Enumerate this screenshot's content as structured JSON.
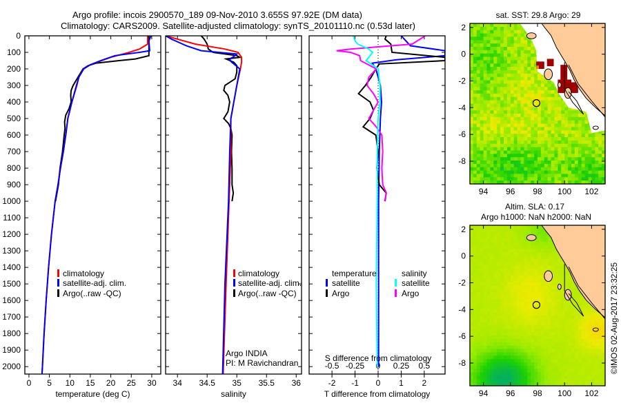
{
  "title": {
    "line1": "Argo profile: incois 2900570_189 09-Nov-2010 3.655S 97.92E (DM data)",
    "line2": "Climatology: CARS2009. Satellite-adjusted climatology: synTS_20101110.nc (0.53d later)"
  },
  "colors": {
    "climatology": "#ff0000",
    "satellite": "#0000ff",
    "argo": "#000000",
    "sal_satellite": "#00ffff",
    "sal_argo": "#ff00ff",
    "land": "#ffcc99",
    "flag": "#a00000"
  },
  "annotation": {
    "argo_program": "Argo INDIA",
    "pi": "PI: M Ravichandran"
  },
  "credit": "©IMOS 02-Aug-2017 23:32:25",
  "chart_data": [
    {
      "type": "line",
      "id": "temperature",
      "xlabel": "temperature (deg C)",
      "ylabel": "depth",
      "xlim": [
        -1,
        32.2
      ],
      "ylim": [
        2045,
        0
      ],
      "xticks": [
        0,
        5,
        10,
        15,
        20,
        25,
        30
      ],
      "yticks": [
        0,
        100,
        200,
        300,
        400,
        500,
        600,
        700,
        800,
        900,
        1000,
        1100,
        1200,
        1300,
        1400,
        1500,
        1600,
        1700,
        1800,
        1900,
        2000
      ],
      "legend": [
        "climatology",
        "satellite-adj. clim.",
        "Argo(..raw -QC)"
      ],
      "series": [
        {
          "name": "climatology",
          "color": "#ff0000",
          "depth": [
            0,
            50,
            80,
            100,
            130,
            150,
            175,
            200,
            250,
            300,
            400,
            500,
            600,
            700,
            800,
            900,
            1000,
            1200,
            1400,
            1600,
            1800,
            2000,
            2045
          ],
          "values": [
            29,
            29,
            27,
            24.5,
            20,
            17.7,
            15,
            13.3,
            12.2,
            11.7,
            10.5,
            9.5,
            9,
            8.4,
            7.7,
            7.1,
            6.4,
            5.5,
            4.8,
            4.2,
            3.7,
            3.3,
            3.2
          ]
        },
        {
          "name": "satellite-adj. clim.",
          "color": "#0000ff",
          "depth": [
            0,
            30,
            90,
            100,
            120,
            150,
            175,
            200,
            250,
            300,
            400,
            500,
            600,
            700,
            800,
            900,
            1000,
            1200,
            1400,
            1600,
            1800,
            2000,
            2045
          ],
          "values": [
            29.8,
            29.3,
            29.5,
            27,
            21,
            17.5,
            15,
            13.4,
            12.2,
            11.6,
            10.5,
            9.5,
            9,
            8.4,
            7.7,
            7.1,
            6.4,
            5.5,
            4.8,
            4.2,
            3.7,
            3.3,
            3.2
          ]
        },
        {
          "name": "Argo(..raw -QC)",
          "color": "#000000",
          "depth": [
            0,
            120,
            140,
            150,
            165,
            180,
            200,
            250,
            300,
            330,
            360,
            400,
            440,
            480,
            520,
            560,
            600,
            700,
            800,
            900,
            1000
          ],
          "values": [
            29.3,
            29.3,
            26,
            22,
            16.5,
            14.5,
            13.2,
            12,
            10.8,
            10.3,
            10.2,
            10.3,
            9.8,
            9.0,
            8.7,
            8.8,
            8.6,
            8.2,
            7.6,
            7.2,
            6.5
          ]
        }
      ]
    },
    {
      "type": "line",
      "id": "salinity",
      "xlabel": "salinity",
      "xlim": [
        33.8,
        36.09
      ],
      "ylim": [
        2045,
        0
      ],
      "xticks": [
        34,
        34.5,
        35,
        35.5,
        36
      ],
      "legend": [
        "climatology",
        "satellite-adj. clim.",
        "Argo(..raw -QC)"
      ],
      "series": [
        {
          "name": "climatology",
          "color": "#ff0000",
          "depth": [
            0,
            20,
            50,
            80,
            100,
            130,
            160,
            200,
            300,
            400,
            500,
            700,
            1000,
            1500,
            2045
          ],
          "values": [
            33.8,
            34.0,
            34.3,
            34.8,
            35.02,
            35.08,
            35.08,
            35.06,
            35.0,
            34.95,
            34.9,
            34.9,
            34.87,
            34.82,
            34.77
          ]
        },
        {
          "name": "satellite-adj. clim.",
          "color": "#0000ff",
          "depth": [
            0,
            20,
            60,
            90,
            110,
            125,
            140,
            155,
            200,
            300,
            400,
            500,
            700,
            1000,
            1500,
            2045
          ],
          "values": [
            33.8,
            33.9,
            34.15,
            34.4,
            35.0,
            34.95,
            34.88,
            34.9,
            35.05,
            35.0,
            34.95,
            34.9,
            34.88,
            34.86,
            34.8,
            34.76
          ]
        },
        {
          "name": "Argo(..raw -QC)",
          "color": "#000000",
          "depth": [
            0,
            20,
            50,
            80,
            100,
            120,
            130,
            140,
            160,
            180,
            220,
            260,
            300,
            330,
            360,
            400,
            460,
            500,
            530,
            560,
            600,
            700,
            800,
            900,
            950,
            1000
          ],
          "values": [
            34.4,
            34.45,
            34.5,
            34.52,
            34.6,
            35.0,
            35.05,
            34.82,
            34.95,
            35.0,
            35.0,
            34.97,
            34.8,
            34.78,
            34.85,
            34.88,
            34.85,
            34.78,
            34.86,
            34.9,
            34.92,
            34.91,
            34.92,
            34.92,
            34.94,
            34.92
          ]
        }
      ]
    },
    {
      "type": "line",
      "id": "difference",
      "xlabel": "T difference from climatology",
      "xlabel2": "S difference from climatology",
      "xlim": [
        -2.99,
        2.9
      ],
      "xlim_s": [
        -0.7475,
        0.725
      ],
      "ylim": [
        2045,
        0
      ],
      "xticks": [
        "-2",
        "-1",
        "0",
        "1",
        "2"
      ],
      "xticks_s": [
        "-0.5",
        "-0.25",
        "0",
        "0.25",
        "0.5"
      ],
      "legend": {
        "temperature_header": "temperature",
        "salinity_header": "salinity",
        "t_satellite": "satellite",
        "t_argo": "Argo",
        "s_satellite": "satellite",
        "s_argo": "Argo"
      },
      "series": [
        {
          "name": "T satellite",
          "units": "degC",
          "color": "#0000ff",
          "depth": [
            0,
            30,
            60,
            90,
            100,
            120,
            145,
            165,
            200,
            300,
            400,
            500,
            700,
            1000,
            1500,
            2000
          ],
          "values": [
            1.0,
            1.2,
            1.4,
            2.9,
            2.9,
            2.9,
            0.8,
            -0.25,
            -0.1,
            0.1,
            0.15,
            0.1,
            0.05,
            0.02,
            0.02,
            0.02
          ]
        },
        {
          "name": "T Argo",
          "units": "degC",
          "color": "#000000",
          "depth": [
            0,
            20,
            50,
            100,
            130,
            150,
            170,
            200,
            250,
            300,
            350,
            400,
            450,
            500,
            550,
            600,
            700,
            800,
            900,
            950,
            1000
          ],
          "values": [
            0.35,
            0.3,
            0.55,
            0.6,
            2.9,
            2.9,
            0.05,
            -0.1,
            -0.3,
            -0.55,
            -0.85,
            -0.35,
            -0.2,
            -0.35,
            -0.65,
            -0.1,
            0,
            -0.05,
            0.05,
            0.35,
            0.3
          ]
        },
        {
          "name": "S satellite",
          "units": "psu",
          "color": "#00ffff",
          "depth": [
            0,
            30,
            50,
            80,
            100,
            130,
            150,
            200,
            300,
            400,
            500,
            700,
            1000,
            1500,
            2000
          ],
          "values": [
            -0.27,
            -0.25,
            -0.22,
            -0.1,
            -0.06,
            -0.1,
            -0.13,
            0,
            0.02,
            0.02,
            0.0,
            -0.01,
            -0.01,
            -0.02,
            -0.01
          ]
        },
        {
          "name": "S Argo",
          "units": "psu",
          "color": "#ff00ff",
          "depth": [
            0,
            50,
            80,
            90,
            100,
            120,
            150,
            200,
            250,
            300,
            350,
            400,
            450,
            500,
            550,
            600,
            700,
            800,
            900,
            950,
            1000
          ],
          "values": [
            0.51,
            0.37,
            -0.3,
            -0.45,
            -0.3,
            -0.2,
            -0.19,
            -0.02,
            -0.1,
            -0.12,
            -0.05,
            0,
            -0.05,
            -0.1,
            -0.02,
            0.04,
            0.05,
            0.04,
            0.05,
            0.09,
            0.07
          ]
        }
      ]
    },
    {
      "type": "heatmap",
      "id": "sst-map",
      "title": "sat. SST: 29.8 Argo: 29",
      "sat_sst": 29.8,
      "argo_sst": 29,
      "lon_range": [
        93,
        103
      ],
      "lat_range": [
        -9.7,
        2.3
      ],
      "xticks": [
        94,
        96,
        98,
        100,
        102
      ],
      "yticks": [
        2,
        0,
        -2,
        -4,
        -6,
        -8
      ],
      "argo_position": {
        "lon": 97.92,
        "lat": -3.655
      }
    },
    {
      "type": "heatmap",
      "id": "sla-map",
      "title": "Altim. SLA: 0.17",
      "subtitle": "Argo h1000: NaN h2000: NaN",
      "sla": 0.17,
      "lon_range": [
        93,
        103
      ],
      "lat_range": [
        -9.7,
        2.3
      ],
      "xticks": [
        94,
        96,
        98,
        100,
        102
      ],
      "yticks": [
        2,
        0,
        -2,
        -4,
        -6,
        -8
      ],
      "argo_position": {
        "lon": 97.92,
        "lat": -3.655
      }
    }
  ]
}
